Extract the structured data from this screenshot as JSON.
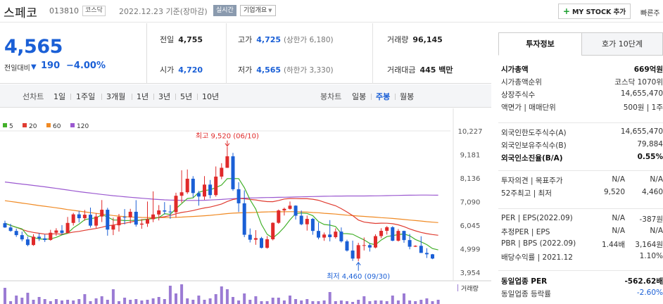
{
  "header": {
    "stock_name": "스페코",
    "stock_code": "013810",
    "market": "코스닥",
    "date": "2022.12.23 기준(장마감)",
    "realtime": "실시간",
    "company_info": "기업개요",
    "my_stock": "MY STOCK 추가",
    "quick_link": "빠른주"
  },
  "price": {
    "current": "4,565",
    "compare_label": "전일대비",
    "compare_value": "190",
    "compare_pct": "−4.00%",
    "direction_icon": "down-triangle-icon"
  },
  "stats": {
    "prev_close": {
      "label": "전일",
      "value": "4,755"
    },
    "high": {
      "label": "고가",
      "value": "4,725",
      "note": "(상한가 6,180)"
    },
    "volume": {
      "label": "거래량",
      "value": "96,145"
    },
    "open": {
      "label": "시가",
      "value": "4,720"
    },
    "low": {
      "label": "저가",
      "value": "4,565",
      "note": "(하한가 3,330)"
    },
    "amount": {
      "label": "거래대금",
      "value": "445 백만"
    }
  },
  "chart_tabs": {
    "line_label": "선차트",
    "line_periods": [
      "1일",
      "1주일",
      "3개월",
      "1년",
      "3년",
      "5년",
      "10년"
    ],
    "candle_label": "봉차트",
    "candle_periods": [
      "일봉",
      "주봉",
      "월봉"
    ],
    "active_candle": "주봉"
  },
  "colors": {
    "up": "#e02a2a",
    "down": "#1a5fd6",
    "ma5": "#43b02a",
    "ma20": "#e03c31",
    "ma60": "#f08a24",
    "ma120": "#9b59d0"
  },
  "chart_data": {
    "type": "candlestick",
    "legend": [
      "5",
      "20",
      "60",
      "120"
    ],
    "ylim": [
      3954,
      10227
    ],
    "y_ticks": [
      "10,227",
      "9,181",
      "8,136",
      "7,090",
      "6,045",
      "4,999",
      "3,954"
    ],
    "y_tick_values": [
      10227,
      9181,
      8136,
      7090,
      6045,
      4999,
      3954
    ],
    "annotations": {
      "high": {
        "text": "최고 9,520 (06/10)",
        "index": 39,
        "value": 9520
      },
      "low": {
        "text": "최저 4,460 (09/30)",
        "index": 62,
        "value": 4460
      }
    },
    "volume_label": "거래량",
    "candles": [
      [
        6133,
        6245,
        5925,
        5945
      ],
      [
        5945,
        6105,
        5755,
        5790
      ],
      [
        5790,
        5895,
        5525,
        5605
      ],
      [
        5605,
        5760,
        5330,
        5415
      ],
      [
        5415,
        5535,
        5110,
        5165
      ],
      [
        5165,
        5645,
        5130,
        5535
      ],
      [
        5535,
        5690,
        5345,
        5460
      ],
      [
        5460,
        5635,
        5300,
        5390
      ],
      [
        5390,
        5840,
        5355,
        5710
      ],
      [
        5710,
        5910,
        5575,
        5810
      ],
      [
        5810,
        6050,
        5625,
        5700
      ],
      [
        5700,
        6410,
        5695,
        6145
      ],
      [
        6145,
        6590,
        6030,
        6525
      ],
      [
        6525,
        6680,
        6165,
        6355
      ],
      [
        6355,
        6720,
        6245,
        6510
      ],
      [
        6510,
        6825,
        5940,
        6025
      ],
      [
        6025,
        6575,
        5915,
        6430
      ],
      [
        6430,
        7160,
        6185,
        6730
      ],
      [
        6730,
        6815,
        5580,
        5850
      ],
      [
        5850,
        6380,
        5605,
        6040
      ],
      [
        6040,
        6545,
        5760,
        6415
      ],
      [
        6415,
        6760,
        6080,
        6395
      ],
      [
        6395,
        6770,
        6125,
        6640
      ],
      [
        6640,
        7155,
        5980,
        6070
      ],
      [
        6070,
        6315,
        5885,
        6115
      ],
      [
        6115,
        7095,
        5970,
        6310
      ],
      [
        6310,
        7545,
        6180,
        6520
      ],
      [
        6520,
        6935,
        6255,
        6700
      ],
      [
        6700,
        7070,
        6520,
        6650
      ],
      [
        6650,
        6940,
        6330,
        6620
      ],
      [
        6620,
        7485,
        6380,
        7350
      ],
      [
        7350,
        8480,
        7040,
        7505
      ],
      [
        7505,
        8515,
        7430,
        8105
      ],
      [
        8105,
        8220,
        7275,
        7470
      ],
      [
        7470,
        7565,
        6910,
        7315
      ],
      [
        7315,
        8220,
        7170,
        7845
      ],
      [
        7845,
        8050,
        7235,
        7380
      ],
      [
        7380,
        8650,
        7310,
        8200
      ],
      [
        8200,
        8795,
        8085,
        8590
      ],
      [
        8590,
        9520,
        8585,
        9100
      ],
      [
        9100,
        9250,
        7565,
        7640
      ],
      [
        7640,
        7950,
        6630,
        7015
      ],
      [
        7015,
        7590,
        5515,
        5620
      ],
      [
        5620,
        5900,
        5280,
        5400
      ],
      [
        5400,
        5825,
        5175,
        5470
      ],
      [
        5470,
        5525,
        5015,
        5040
      ],
      [
        5040,
        5560,
        5005,
        5420
      ],
      [
        5420,
        6170,
        5370,
        6150
      ],
      [
        6150,
        6740,
        6105,
        6700
      ],
      [
        6700,
        6825,
        6475,
        6770
      ],
      [
        6770,
        7095,
        6735,
        6910
      ],
      [
        6910,
        6930,
        6295,
        6465
      ],
      [
        6465,
        6695,
        6045,
        6085
      ],
      [
        6085,
        6470,
        5805,
        6325
      ],
      [
        6325,
        6365,
        5620,
        5790
      ],
      [
        5790,
        6165,
        5415,
        5495
      ],
      [
        5495,
        5720,
        5350,
        5630
      ],
      [
        5630,
        6270,
        5325,
        5515
      ],
      [
        5515,
        5905,
        5450,
        5760
      ],
      [
        5760,
        5945,
        5275,
        5330
      ],
      [
        5330,
        5400,
        4875,
        4920
      ],
      [
        4920,
        5360,
        4460,
        4565
      ],
      [
        4565,
        5265,
        4445,
        5160
      ],
      [
        5160,
        5500,
        4925,
        5160
      ],
      [
        5160,
        5250,
        4875,
        5055
      ],
      [
        5055,
        5645,
        5020,
        5560
      ],
      [
        5560,
        5910,
        5465,
        5795
      ],
      [
        5795,
        6005,
        5630,
        5955
      ],
      [
        5955,
        6000,
        5335,
        5355
      ],
      [
        5355,
        5875,
        5320,
        5790
      ],
      [
        5790,
        5805,
        5265,
        5385
      ],
      [
        5385,
        5655,
        4975,
        5090
      ],
      [
        5090,
        5155,
        5075,
        5130
      ],
      [
        5130,
        5555,
        4815,
        4815
      ],
      [
        4815,
        5025,
        4590,
        4755
      ],
      [
        4755,
        4770,
        4540,
        4565
      ]
    ],
    "ma5": [
      6133,
      6036,
      5952,
      5881,
      5578,
      5500,
      5438,
      5418,
      5438,
      5505,
      5613,
      5684,
      5926,
      6093,
      6287,
      6336,
      6373,
      6510,
      6412,
      6276,
      6272,
      6248,
      6255,
      6262,
      6269,
      6314,
      6335,
      6382,
      6556,
      6522,
      6775,
      7004,
      7227,
      7255,
      7499,
      7584,
      7614,
      7711,
      7828,
      8109,
      8113,
      8112,
      7708,
      7171,
      6757,
      6080,
      5640,
      5480,
      5689,
      5954,
      6283,
      6563,
      6581,
      6567,
      6470,
      6204,
      6075,
      6048,
      5987,
      5673,
      5669,
      5641,
      5514,
      5393,
      5237,
      5176,
      5388,
      5540,
      5584,
      5628,
      5659,
      5578,
      5413,
      5305,
      5183,
      5008,
      4951
    ],
    "ma20": [
      6133,
      6036,
      5947,
      5855,
      5773,
      5723,
      5686,
      5649,
      5656,
      5664,
      5643,
      5690,
      5738,
      5771,
      5818,
      5861,
      5897,
      5955,
      6016,
      6052,
      6099,
      6130,
      6180,
      6235,
      6282,
      6309,
      6359,
      6384,
      6420,
      6476,
      6551,
      6609,
      6646,
      6695,
      6756,
      6811,
      6851,
      6912,
      6985,
      7097,
      7184,
      7231,
      7218,
      7187,
      7164,
      7122,
      7092,
      7088,
      7141,
      7207,
      7228,
      7225,
      7219,
      7218,
      7198,
      7149,
      7065,
      6985,
      6907,
      6779,
      6632,
      6469,
      6272,
      6181,
      6150,
      6123,
      6134,
      6132,
      6112,
      6062,
      5979,
      5879,
      5795,
      5723,
      5672,
      5629,
      5598
    ],
    "ma60": [
      7130,
      7096,
      7061,
      7026,
      6990,
      6954,
      6917,
      6883,
      6850,
      6816,
      6778,
      6739,
      6704,
      6670,
      6635,
      6600,
      6570,
      6539,
      6506,
      6473,
      6448,
      6427,
      6410,
      6398,
      6389,
      6384,
      6382,
      6381,
      6382,
      6386,
      6393,
      6404,
      6418,
      6432,
      6447,
      6462,
      6483,
      6507,
      6533,
      6560,
      6578,
      6591,
      6597,
      6604,
      6614,
      6626,
      6636,
      6641,
      6639,
      6642,
      6645,
      6645,
      6636,
      6626,
      6607,
      6596,
      6572,
      6556,
      6539,
      6513,
      6487,
      6469,
      6452,
      6434,
      6416,
      6401,
      6380,
      6364,
      6346,
      6323,
      6297,
      6272,
      6250,
      6228,
      6202,
      6179,
      6160
    ],
    "ma120": [
      7960,
      7929,
      7899,
      7868,
      7838,
      7808,
      7777,
      7745,
      7711,
      7676,
      7641,
      7604,
      7567,
      7532,
      7500,
      7470,
      7440,
      7410,
      7380,
      7354,
      7331,
      7306,
      7283,
      7261,
      7240,
      7221,
      7201,
      7183,
      7169,
      7160,
      7153,
      7147,
      7143,
      7142,
      7145,
      7151,
      7161,
      7174,
      7188,
      7207,
      7223,
      7235,
      7243,
      7251,
      7257,
      7264,
      7270,
      7276,
      7280,
      7285,
      7290,
      7296,
      7302,
      7310,
      7316,
      7321,
      7327,
      7332,
      7336,
      7338,
      7339,
      7339,
      7339,
      7341,
      7343,
      7345,
      7350,
      7355,
      7361,
      7366,
      7371,
      7374,
      7377,
      7380,
      7381,
      7379,
      7374
    ],
    "volume": [
      2.3,
      0.4,
      1.2,
      0.9,
      1.6,
      0.6,
      1.0,
      0.7,
      0.4,
      0.7,
      0.5,
      0.6,
      0.5,
      0.7,
      1.4,
      0.4,
      0.8,
      1.1,
      0.6,
      2.1,
      0.4,
      0.9,
      0.6,
      0.7,
      0.5,
      0.6,
      0.8,
      1.0,
      0.7,
      2.6,
      1.5,
      2.8,
      0.8,
      0.6,
      1.2,
      0.6,
      0.8,
      1.4,
      2.5,
      2.1,
      1.0,
      0.5,
      1.5,
      0.6,
      1.1,
      0.4,
      0.4,
      0.9,
      0.9,
      0.5,
      1.2,
      0.7,
      0.5,
      0.7,
      0.4,
      0.4,
      0.5,
      1.7,
      0.4,
      0.5,
      0.4,
      0.3,
      0.6,
      1.1,
      0.4,
      0.5,
      0.5,
      0.4,
      1.2,
      0.5,
      1.5,
      0.5,
      0.4,
      0.6,
      0.8,
      0.4,
      0.6
    ]
  },
  "side": {
    "tab_invest": "투자정보",
    "tab_quote": "호가 10단계",
    "rows1": [
      {
        "k": "시가총액",
        "v": "669억원",
        "bold": true
      },
      {
        "k": "시가총액순위",
        "v": "코스닥 1070위"
      },
      {
        "k": "상장주식수",
        "v": "14,655,470"
      },
      {
        "k": "액면가 | 매매단위",
        "v": "500원 | 1주"
      }
    ],
    "rows2": [
      {
        "k": "외국인한도주식수(A)",
        "v": "14,655,470"
      },
      {
        "k": "외국인보유주식수(B)",
        "v": "79,884"
      },
      {
        "k": "외국인소진율(B/A)",
        "v": "0.55%",
        "bold": true
      }
    ],
    "rows3": [
      {
        "k": "투자의견 | 목표주가",
        "v1": "N/A",
        "v": "N/A"
      },
      {
        "k": "52주최고 | 최저",
        "v1": "9,520",
        "v": "4,460"
      }
    ],
    "rows4": [
      {
        "k": "PER | EPS(2022.09)",
        "v1": "N/A",
        "v": "-387원"
      },
      {
        "k": "추정PER | EPS",
        "v1": "N/A",
        "v": "N/A"
      },
      {
        "k": "PBR | BPS (2022.09)",
        "v1": "1.44배",
        "v": "3,164원"
      },
      {
        "k": "배당수익률 | 2021.12",
        "v": "1.10%"
      }
    ],
    "rows5": [
      {
        "k": "동일업종 PER",
        "v": "-562.62배",
        "bold": true
      },
      {
        "k": "동일업종 등락률",
        "v": "-2.60%",
        "blue": true
      }
    ]
  }
}
